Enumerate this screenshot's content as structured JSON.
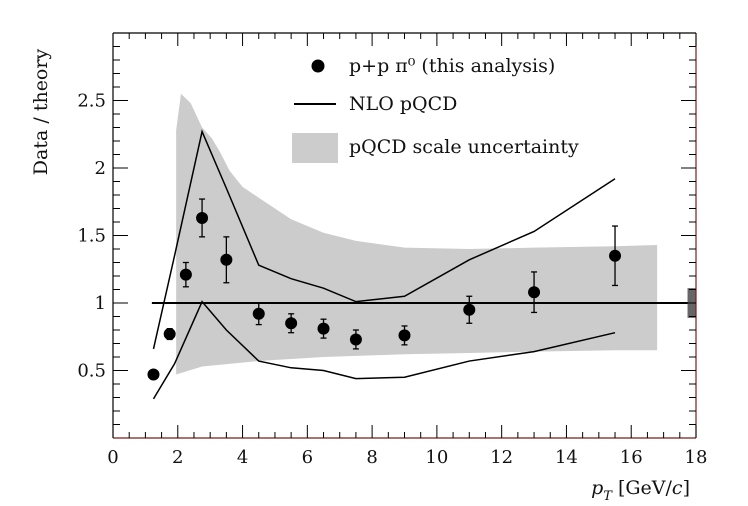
{
  "chart_data": {
    "type": "scatter",
    "xlabel_main": "p",
    "xlabel_sub": "T",
    "xlabel_units": "[GeV/",
    "xlabel_units_var": "c",
    "xlabel_units_end": "]",
    "ylabel": "Data / theory",
    "xlim": [
      0,
      18
    ],
    "ylim": [
      0,
      3
    ],
    "x_ticks": [
      0,
      2,
      4,
      6,
      8,
      10,
      12,
      14,
      16,
      18
    ],
    "y_ticks": [
      0.5,
      1,
      1.5,
      2,
      2.5
    ],
    "x_tick_labels": [
      "0",
      "2",
      "4",
      "6",
      "8",
      "10",
      "12",
      "14",
      "16",
      "18"
    ],
    "y_tick_labels": [
      "0.5",
      "1",
      "1.5",
      "2",
      "2.5"
    ],
    "reference_line": 1,
    "normalization_box": {
      "x": 17.8,
      "low": 0.89,
      "high": 1.11
    },
    "legend": {
      "data_series": "p+p π⁰ (this analysis)",
      "line_series": "NLO pQCD",
      "band_series": "pQCD scale uncertainty"
    },
    "data_points": [
      {
        "x": 1.25,
        "y": 0.47,
        "err": 0
      },
      {
        "x": 1.75,
        "y": 0.77,
        "err": 0.04
      },
      {
        "x": 2.25,
        "y": 1.21,
        "err": 0.09
      },
      {
        "x": 2.75,
        "y": 1.63,
        "err": 0.14
      },
      {
        "x": 3.5,
        "y": 1.32,
        "err": 0.17
      },
      {
        "x": 4.5,
        "y": 0.92,
        "err": 0.08
      },
      {
        "x": 5.5,
        "y": 0.85,
        "err": 0.07
      },
      {
        "x": 6.5,
        "y": 0.81,
        "err": 0.07
      },
      {
        "x": 7.5,
        "y": 0.73,
        "err": 0.07
      },
      {
        "x": 9,
        "y": 0.76,
        "err": 0.07
      },
      {
        "x": 11,
        "y": 0.95,
        "err": 0.1
      },
      {
        "x": 13,
        "y": 1.08,
        "err": 0.15
      },
      {
        "x": 15.5,
        "y": 1.35,
        "err": 0.22
      }
    ],
    "nlo_upper": [
      {
        "x": 1.25,
        "y": 0.66
      },
      {
        "x": 1.9,
        "y": 1.35
      },
      {
        "x": 2.75,
        "y": 2.27
      },
      {
        "x": 3.5,
        "y": 1.85
      },
      {
        "x": 4.5,
        "y": 1.28
      },
      {
        "x": 5.5,
        "y": 1.18
      },
      {
        "x": 6.5,
        "y": 1.11
      },
      {
        "x": 7.5,
        "y": 1.01
      },
      {
        "x": 9,
        "y": 1.05
      },
      {
        "x": 11,
        "y": 1.32
      },
      {
        "x": 13,
        "y": 1.53
      },
      {
        "x": 15.5,
        "y": 1.92
      }
    ],
    "nlo_lower": [
      {
        "x": 1.25,
        "y": 0.29
      },
      {
        "x": 1.9,
        "y": 0.55
      },
      {
        "x": 2.75,
        "y": 1.01
      },
      {
        "x": 3.5,
        "y": 0.8
      },
      {
        "x": 4.5,
        "y": 0.57
      },
      {
        "x": 5.5,
        "y": 0.52
      },
      {
        "x": 6.5,
        "y": 0.5
      },
      {
        "x": 7.5,
        "y": 0.44
      },
      {
        "x": 9,
        "y": 0.45
      },
      {
        "x": 11,
        "y": 0.57
      },
      {
        "x": 13,
        "y": 0.64
      },
      {
        "x": 15.5,
        "y": 0.78
      }
    ],
    "band_upper": [
      {
        "x": 1.95,
        "y": 2.28
      },
      {
        "x": 2.1,
        "y": 2.55
      },
      {
        "x": 2.4,
        "y": 2.48
      },
      {
        "x": 2.75,
        "y": 2.3
      },
      {
        "x": 3.05,
        "y": 2.22
      },
      {
        "x": 3.3,
        "y": 2.12
      },
      {
        "x": 3.6,
        "y": 1.98
      },
      {
        "x": 4.0,
        "y": 1.86
      },
      {
        "x": 4.5,
        "y": 1.78
      },
      {
        "x": 5.5,
        "y": 1.62
      },
      {
        "x": 6.5,
        "y": 1.52
      },
      {
        "x": 7.5,
        "y": 1.46
      },
      {
        "x": 9,
        "y": 1.41
      },
      {
        "x": 11,
        "y": 1.4
      },
      {
        "x": 13,
        "y": 1.41
      },
      {
        "x": 15.5,
        "y": 1.42
      },
      {
        "x": 16.8,
        "y": 1.43
      }
    ],
    "band_lower": [
      {
        "x": 1.95,
        "y": 0.47
      },
      {
        "x": 2.75,
        "y": 0.53
      },
      {
        "x": 4.5,
        "y": 0.57
      },
      {
        "x": 6.5,
        "y": 0.6
      },
      {
        "x": 9,
        "y": 0.62
      },
      {
        "x": 11,
        "y": 0.63
      },
      {
        "x": 13,
        "y": 0.64
      },
      {
        "x": 15.5,
        "y": 0.65
      },
      {
        "x": 16.8,
        "y": 0.65
      }
    ],
    "colors": {
      "marker": "#000000",
      "line": "#000000",
      "band": "#cccccc",
      "norm_box": "#666666",
      "frame_right": "#7a1f1f"
    }
  }
}
